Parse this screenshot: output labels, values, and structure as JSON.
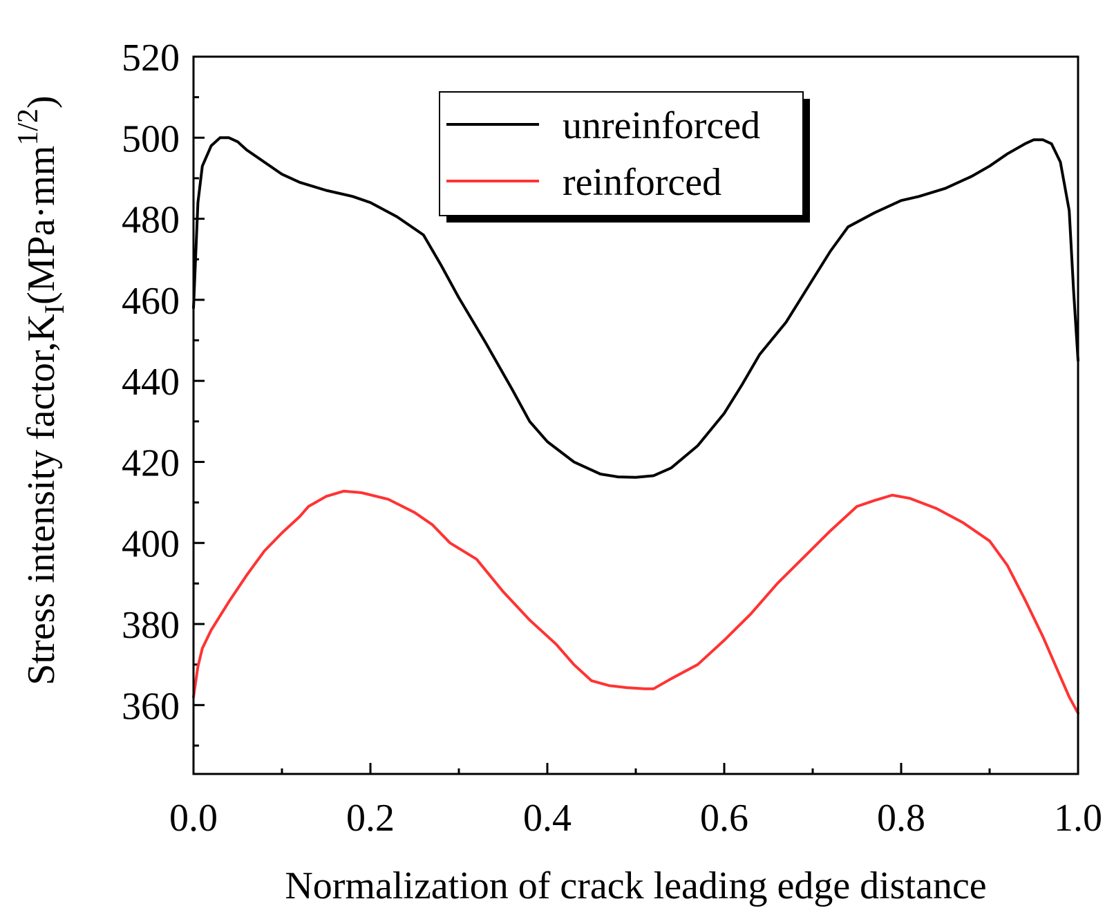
{
  "chart_data": {
    "type": "line",
    "title": "",
    "xlabel": "Normalization of crack leading edge distance",
    "ylabel_main": "Stress intensity factor,K",
    "ylabel_sub": "I",
    "ylabel_unit": "(MPa·mm",
    "ylabel_sup": "1/2",
    "ylabel_close": ")",
    "xlim": [
      0.0,
      1.0
    ],
    "ylim": [
      343,
      520
    ],
    "xticks": [
      0.0,
      0.2,
      0.4,
      0.6,
      0.8,
      1.0
    ],
    "xtick_labels": [
      "0.0",
      "0.2",
      "0.4",
      "0.6",
      "0.8",
      "1.0"
    ],
    "yticks": [
      360,
      380,
      400,
      420,
      440,
      460,
      480,
      500,
      520
    ],
    "ytick_labels": [
      "360",
      "380",
      "400",
      "420",
      "440",
      "460",
      "480",
      "500",
      "520"
    ],
    "legend_position": "top-center",
    "series": [
      {
        "name": "unreinforced",
        "color": "#000000",
        "x": [
          0.0,
          0.005,
          0.01,
          0.02,
          0.03,
          0.04,
          0.05,
          0.06,
          0.08,
          0.1,
          0.12,
          0.15,
          0.18,
          0.2,
          0.23,
          0.26,
          0.28,
          0.3,
          0.33,
          0.36,
          0.38,
          0.4,
          0.43,
          0.46,
          0.48,
          0.5,
          0.52,
          0.54,
          0.57,
          0.6,
          0.62,
          0.64,
          0.67,
          0.7,
          0.72,
          0.74,
          0.77,
          0.8,
          0.82,
          0.85,
          0.88,
          0.9,
          0.92,
          0.94,
          0.95,
          0.96,
          0.97,
          0.98,
          0.99,
          0.995,
          1.0
        ],
        "values": [
          458,
          484,
          493,
          498,
          500,
          500,
          499,
          497,
          494,
          491,
          489,
          487,
          485.5,
          484,
          480.5,
          476,
          468.5,
          460.5,
          449.5,
          438,
          430,
          425,
          420,
          417,
          416.3,
          416.2,
          416.6,
          418.5,
          424,
          432,
          439,
          446.5,
          454.5,
          465,
          472,
          478,
          481.5,
          484.5,
          485.5,
          487.5,
          490.5,
          493,
          496,
          498.5,
          499.5,
          499.5,
          498.5,
          494,
          482,
          462,
          445
        ]
      },
      {
        "name": "reinforced",
        "color": "#ff3333",
        "x": [
          0.0,
          0.005,
          0.01,
          0.02,
          0.04,
          0.06,
          0.08,
          0.1,
          0.12,
          0.13,
          0.15,
          0.17,
          0.19,
          0.22,
          0.25,
          0.27,
          0.29,
          0.32,
          0.35,
          0.38,
          0.41,
          0.43,
          0.45,
          0.47,
          0.49,
          0.51,
          0.52,
          0.54,
          0.57,
          0.6,
          0.63,
          0.66,
          0.69,
          0.72,
          0.75,
          0.77,
          0.79,
          0.81,
          0.84,
          0.87,
          0.9,
          0.92,
          0.94,
          0.96,
          0.98,
          0.99,
          0.995,
          1.0
        ],
        "values": [
          362,
          369.5,
          374,
          378.5,
          385.5,
          392,
          398,
          402.5,
          406.5,
          409,
          411.5,
          412.8,
          412.4,
          410.8,
          407.5,
          404.5,
          400,
          396,
          388,
          381,
          375,
          370,
          366,
          364.8,
          364.3,
          364,
          364,
          366.5,
          370,
          376,
          382.5,
          390,
          396.5,
          403,
          409,
          410.5,
          411.8,
          411,
          408.5,
          405,
          400.5,
          394.5,
          386,
          377,
          367,
          362,
          360,
          358
        ]
      }
    ]
  },
  "colors": {
    "axis": "#000000",
    "background": "#ffffff"
  }
}
